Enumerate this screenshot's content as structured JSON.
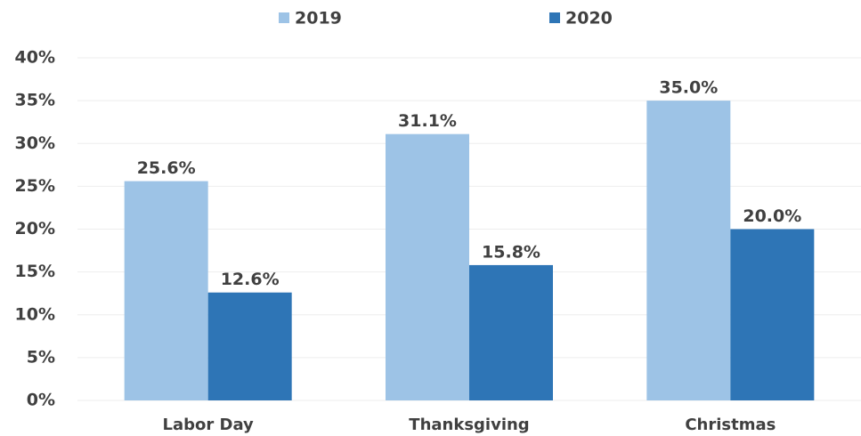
{
  "chart_data": {
    "type": "bar",
    "categories": [
      "Labor Day",
      "Thanksgiving",
      "Christmas"
    ],
    "series": [
      {
        "name": "2019",
        "color": "#9dc3e6",
        "values": [
          25.6,
          31.1,
          35.0
        ],
        "value_labels": [
          "25.6%",
          "31.1%",
          "35.0%"
        ]
      },
      {
        "name": "2020",
        "color": "#2e75b6",
        "values": [
          12.6,
          15.8,
          20.0
        ],
        "value_labels": [
          "12.6%",
          "15.8%",
          "20.0%"
        ]
      }
    ],
    "ylim": [
      0,
      40
    ],
    "yticks": [
      {
        "value": 0,
        "label": "0%"
      },
      {
        "value": 5,
        "label": "5%"
      },
      {
        "value": 10,
        "label": "10%"
      },
      {
        "value": 15,
        "label": "15%"
      },
      {
        "value": 20,
        "label": "20%"
      },
      {
        "value": 25,
        "label": "25%"
      },
      {
        "value": 30,
        "label": "30%"
      },
      {
        "value": 35,
        "label": "35%"
      },
      {
        "value": 40,
        "label": "40%"
      }
    ],
    "grid": true,
    "legend": "top"
  }
}
